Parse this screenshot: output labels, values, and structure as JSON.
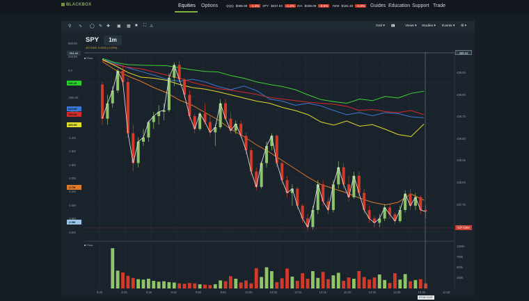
{
  "nav": {
    "logo": "BLACKBOX",
    "tabs": [
      "Equities",
      "Options"
    ],
    "links": [
      "Guides",
      "Education",
      "Support",
      "Trade"
    ]
  },
  "tickers": [
    {
      "sym": "QQQ",
      "price": "$365.58",
      "chg": "-1.2%"
    },
    {
      "sym": "SPY",
      "price": "$437.53",
      "chg": "-1.2%"
    },
    {
      "sym": "DIA",
      "price": "$338.09",
      "chg": "-0.9%"
    },
    {
      "sym": "IWM",
      "price": "$181.33",
      "chg": "-1.6%"
    }
  ],
  "toolbar": {
    "menus": [
      "Grid",
      "Views",
      "Studies",
      "Events"
    ]
  },
  "chart": {
    "symbol": "SPY",
    "timeframe": "1m",
    "quote_line": "437.5300  -0.0100 (-0.00%)",
    "study_label": "Flots",
    "volume_label": "Flots",
    "left_cursor": "354.4K",
    "right_cursor": "439.41",
    "last_price": "437.5300",
    "time_cursor": "07/18 10:37"
  },
  "left_axis": [
    "500.0K",
    "250.0K",
    "0.0",
    "-250.0K",
    "-500.0K",
    "-750.0K",
    "-1.0M",
    "-1.2M",
    "-1.5M",
    "-1.8M",
    "-2.0M",
    "-2.2M",
    "-2.5M",
    "-2.8M",
    "-3.0M"
  ],
  "left_badges": [
    {
      "text": "118.1K",
      "color": "#27d12a"
    },
    {
      "text": "643.0K",
      "color": "#3b78d8"
    },
    {
      "text": "760.0K",
      "color": "#d32a2a"
    },
    {
      "text": "459.0K",
      "color": "#e3dc2a"
    },
    {
      "text": "-2.7M",
      "color": "#e07a2a"
    },
    {
      "text": "-2.9M",
      "color": "#9cc3e8"
    }
  ],
  "right_axis": [
    "439.25",
    "439.00",
    "438.75",
    "438.50",
    "438.25",
    "438.00",
    "437.75",
    "437.50"
  ],
  "volume_axis": [
    "1000k",
    "750k",
    "500k",
    "250k"
  ],
  "x_axis": [
    "9:30",
    "9:35",
    "9:40",
    "9:45",
    "9:50",
    "9:55",
    "10:00",
    "10:05",
    "10:10",
    "10:15",
    "10:20",
    "10:25",
    "10:30",
    "10:35",
    "10:40"
  ],
  "chart_data": {
    "type": "candlestick",
    "symbol": "SPY",
    "timeframe": "1m",
    "candles_ohlc": [
      [
        439.02,
        439.05,
        438.55,
        438.62
      ],
      [
        438.62,
        438.9,
        438.55,
        438.8
      ],
      [
        438.8,
        439.0,
        438.75,
        438.95
      ],
      [
        438.95,
        439.2,
        438.92,
        439.18
      ],
      [
        439.18,
        439.25,
        439.0,
        439.05
      ],
      [
        439.05,
        439.1,
        438.4,
        438.45
      ],
      [
        438.45,
        438.55,
        438.0,
        438.1
      ],
      [
        438.1,
        438.4,
        438.05,
        438.35
      ],
      [
        438.35,
        438.5,
        438.3,
        438.4
      ],
      [
        438.4,
        438.6,
        438.35,
        438.58
      ],
      [
        438.58,
        438.7,
        438.5,
        438.65
      ],
      [
        438.65,
        438.78,
        438.55,
        438.7
      ],
      [
        438.7,
        438.8,
        438.6,
        438.72
      ],
      [
        438.72,
        439.15,
        438.7,
        439.1
      ],
      [
        439.1,
        439.28,
        439.0,
        439.25
      ],
      [
        439.25,
        439.3,
        439.05,
        439.08
      ],
      [
        439.08,
        439.1,
        438.85,
        438.9
      ],
      [
        438.9,
        438.95,
        438.6,
        438.65
      ],
      [
        438.65,
        438.68,
        438.45,
        438.5
      ],
      [
        438.5,
        438.7,
        438.48,
        438.68
      ],
      [
        438.68,
        438.8,
        438.55,
        438.58
      ],
      [
        438.58,
        438.65,
        438.42,
        438.46
      ],
      [
        438.46,
        438.55,
        438.3,
        438.52
      ],
      [
        438.52,
        438.85,
        438.5,
        438.8
      ],
      [
        438.8,
        438.85,
        438.6,
        438.62
      ],
      [
        438.62,
        438.7,
        438.45,
        438.48
      ],
      [
        438.48,
        438.6,
        438.44,
        438.56
      ],
      [
        438.56,
        438.6,
        438.4,
        438.42
      ],
      [
        438.42,
        438.46,
        438.2,
        438.25
      ],
      [
        438.25,
        438.28,
        437.95,
        438.0
      ],
      [
        438.0,
        438.05,
        437.78,
        437.82
      ],
      [
        437.82,
        438.12,
        437.8,
        438.1
      ],
      [
        438.1,
        438.35,
        438.05,
        438.3
      ],
      [
        438.3,
        438.45,
        438.25,
        438.42
      ],
      [
        438.42,
        438.44,
        438.05,
        438.1
      ],
      [
        438.1,
        438.12,
        437.85,
        437.9
      ],
      [
        437.9,
        437.95,
        437.7,
        437.75
      ],
      [
        437.75,
        437.85,
        437.6,
        437.8
      ],
      [
        437.8,
        437.82,
        437.55,
        437.6
      ],
      [
        437.6,
        437.62,
        437.4,
        437.45
      ],
      [
        437.45,
        437.5,
        437.3,
        437.35
      ],
      [
        437.35,
        437.6,
        437.32,
        437.55
      ],
      [
        437.55,
        437.9,
        437.5,
        437.85
      ],
      [
        437.85,
        437.9,
        437.6,
        437.65
      ],
      [
        437.65,
        437.7,
        437.5,
        437.55
      ],
      [
        437.55,
        437.9,
        437.52,
        437.85
      ],
      [
        437.85,
        438.12,
        437.8,
        438.05
      ],
      [
        438.05,
        438.1,
        437.8,
        437.85
      ],
      [
        437.85,
        437.95,
        437.65,
        437.7
      ],
      [
        437.7,
        438.0,
        437.68,
        437.95
      ],
      [
        437.95,
        438.0,
        437.7,
        437.75
      ],
      [
        437.75,
        437.8,
        437.5,
        437.55
      ],
      [
        437.55,
        437.6,
        437.4,
        437.45
      ],
      [
        437.45,
        437.48,
        437.35,
        437.4
      ],
      [
        437.4,
        437.5,
        437.35,
        437.45
      ],
      [
        437.45,
        437.62,
        437.42,
        437.58
      ],
      [
        437.58,
        437.62,
        437.45,
        437.5
      ],
      [
        437.5,
        437.52,
        437.38,
        437.42
      ],
      [
        437.42,
        437.6,
        437.4,
        437.55
      ],
      [
        437.55,
        437.78,
        437.52,
        437.74
      ],
      [
        437.74,
        437.8,
        437.55,
        437.6
      ],
      [
        437.6,
        437.75,
        437.55,
        437.7
      ],
      [
        437.7,
        437.72,
        437.5,
        437.55
      ],
      [
        437.55,
        437.6,
        437.45,
        437.53
      ]
    ],
    "volume_k": [
      0,
      0,
      950,
      420,
      380,
      300,
      250,
      220,
      210,
      230,
      180,
      160,
      170,
      150,
      140,
      120,
      110,
      130,
      120,
      100,
      90,
      80,
      100,
      190,
      170,
      290,
      230,
      140,
      190,
      120,
      480,
      270,
      500,
      410,
      150,
      240,
      470,
      280,
      180,
      360,
      230,
      410,
      250,
      390,
      220,
      310,
      370,
      180,
      260,
      230,
      410,
      270,
      210,
      260,
      330,
      200,
      130,
      360,
      210,
      340,
      170,
      200,
      220,
      120
    ],
    "series": [
      {
        "name": "green",
        "values": [
          480,
          400,
          360,
          350,
          345,
          340,
          300,
          260,
          230,
          220,
          150,
          100,
          30,
          -20,
          -60,
          -120,
          -220,
          -310,
          -350,
          -380,
          -300,
          -330,
          -250,
          -280,
          -190,
          -150
        ]
      },
      {
        "name": "blue",
        "values": [
          460,
          380,
          300,
          230,
          160,
          80,
          40,
          80,
          30,
          -60,
          -120,
          -50,
          -140,
          -300,
          -340,
          -420,
          -380,
          -430,
          -520,
          -600,
          -560,
          -620,
          -560,
          -580,
          -640,
          -660
        ]
      },
      {
        "name": "red",
        "values": [
          440,
          360,
          310,
          280,
          220,
          160,
          100,
          20,
          -40,
          -100,
          -130,
          -170,
          -210,
          -270,
          -300,
          -330,
          -360,
          -380,
          -400,
          -440,
          -520,
          -500,
          -540,
          -560,
          -520,
          -600
        ]
      },
      {
        "name": "yellow",
        "values": [
          460,
          340,
          210,
          120,
          100,
          60,
          -20,
          -80,
          -110,
          -160,
          -220,
          -280,
          -340,
          -380,
          -460,
          -520,
          -600,
          -740,
          -800,
          -720,
          -820,
          -790,
          -880,
          -980,
          -1020,
          -780
        ]
      },
      {
        "name": "orange",
        "values": [
          420,
          260,
          140,
          40,
          -80,
          -180,
          -320,
          -420,
          -560,
          -700,
          -880,
          -1020,
          -1180,
          -1320,
          -1480,
          -1640,
          -1800,
          -1940,
          -2020,
          -2100,
          -2200,
          -2280,
          -2330,
          -2280,
          -2120,
          -2240
        ]
      }
    ]
  }
}
